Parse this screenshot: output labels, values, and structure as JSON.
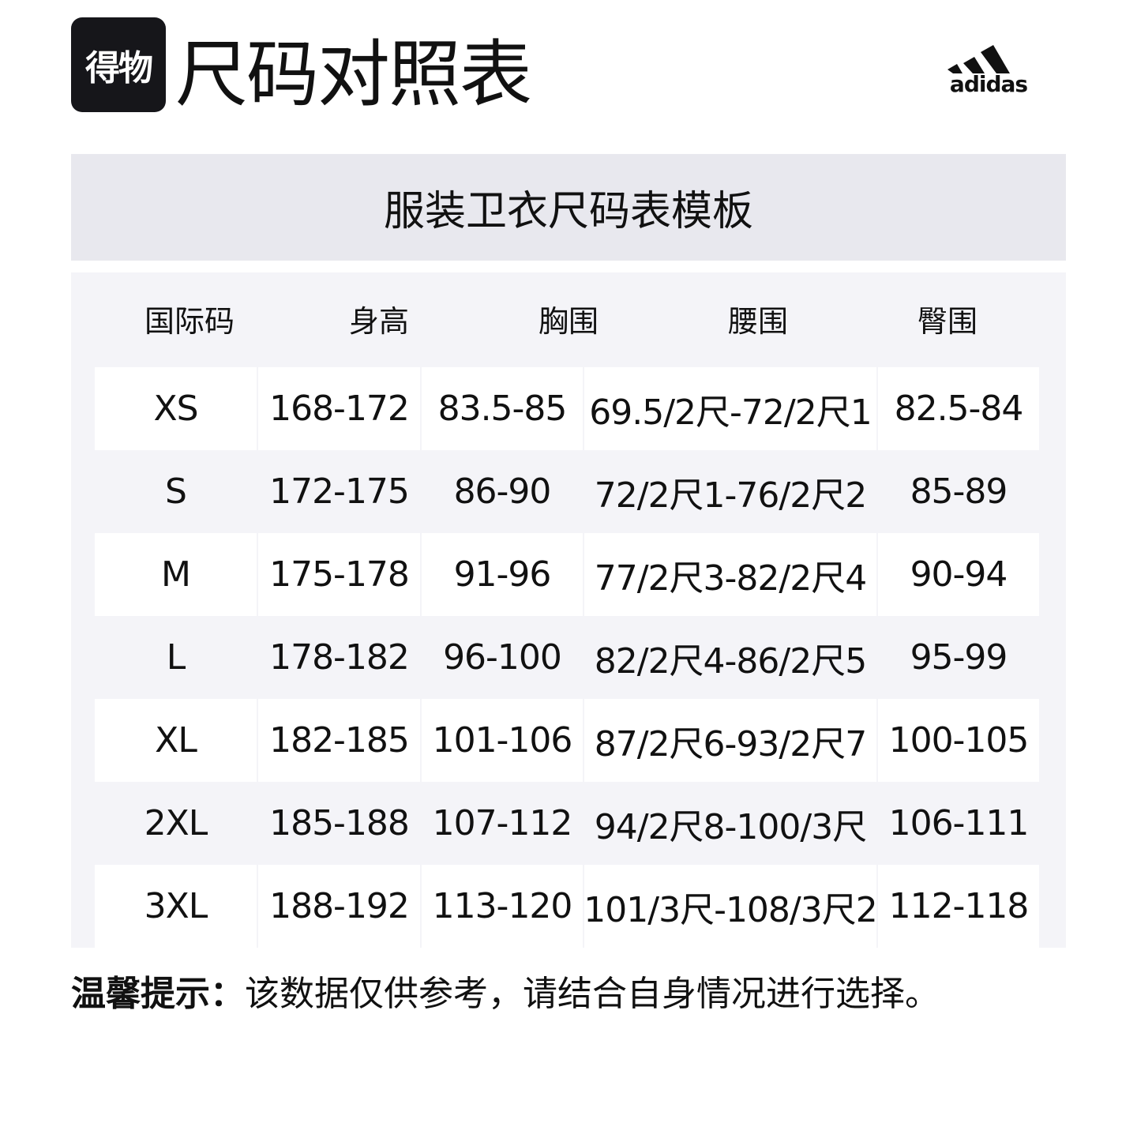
{
  "header": {
    "app_logo_text": "得物",
    "title": "尺码对照表",
    "brand": "adidas"
  },
  "table": {
    "title": "服装卫衣尺码表模板",
    "columns": [
      "国际码",
      "身高",
      "胸围",
      "腰围",
      "臀围"
    ],
    "rows": [
      [
        "XS",
        "168-172",
        "83.5-85",
        "69.5/2尺-72/2尺1",
        "82.5-84"
      ],
      [
        "S",
        "172-175",
        "86-90",
        "72/2尺1-76/2尺2",
        "85-89"
      ],
      [
        "M",
        "175-178",
        "91-96",
        "77/2尺3-82/2尺4",
        "90-94"
      ],
      [
        "L",
        "178-182",
        "96-100",
        "82/2尺4-86/2尺5",
        "95-99"
      ],
      [
        "XL",
        "182-185",
        "101-106",
        "87/2尺6-93/2尺7",
        "100-105"
      ],
      [
        "2XL",
        "185-188",
        "107-112",
        "94/2尺8-100/3尺",
        "106-111"
      ],
      [
        "3XL",
        "188-192",
        "113-120",
        "101/3尺-108/3尺2",
        "112-118"
      ]
    ]
  },
  "tip": {
    "label": "温馨提示：",
    "text": "该数据仅供参考，请结合自身情况进行选择。"
  },
  "colors": {
    "band": "#e8e8ee",
    "panel": "#f4f4f8",
    "logo_bg": "#16161a"
  }
}
